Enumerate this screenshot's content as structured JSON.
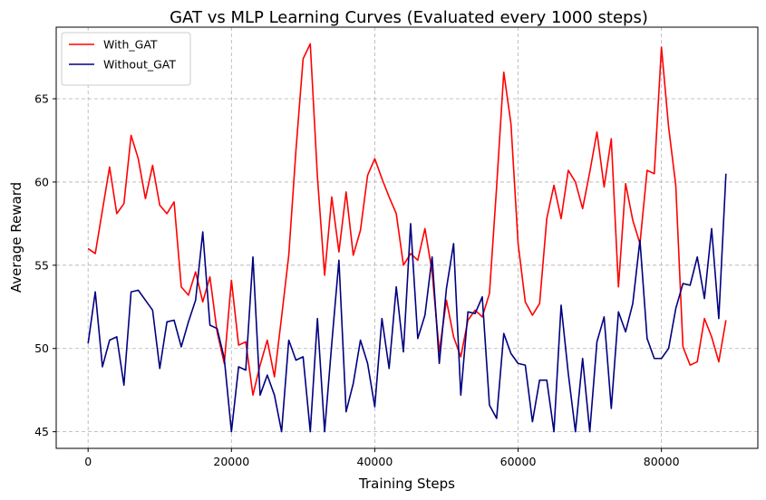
{
  "chart_data": {
    "type": "line",
    "title": "GAT vs MLP Learning Curves (Evaluated every 1000 steps)",
    "xlabel": "Training Steps",
    "ylabel": "Average Reward",
    "xlim": [
      -4450,
      93450
    ],
    "ylim": [
      44.0,
      69.3
    ],
    "xticks": [
      0,
      20000,
      40000,
      60000,
      80000
    ],
    "yticks": [
      45,
      50,
      55,
      60,
      65
    ],
    "grid": true,
    "legend_position": "top-left",
    "x": [
      0,
      1000,
      2000,
      3000,
      4000,
      5000,
      6000,
      7000,
      8000,
      9000,
      10000,
      11000,
      12000,
      13000,
      14000,
      15000,
      16000,
      17000,
      18000,
      19000,
      20000,
      21000,
      22000,
      23000,
      24000,
      25000,
      26000,
      27000,
      28000,
      29000,
      30000,
      31000,
      32000,
      33000,
      34000,
      35000,
      36000,
      37000,
      38000,
      39000,
      40000,
      41000,
      42000,
      43000,
      44000,
      45000,
      46000,
      47000,
      48000,
      49000,
      50000,
      51000,
      52000,
      53000,
      54000,
      55000,
      56000,
      57000,
      58000,
      59000,
      60000,
      61000,
      62000,
      63000,
      64000,
      65000,
      66000,
      67000,
      68000,
      69000,
      70000,
      71000,
      72000,
      73000,
      74000,
      75000,
      76000,
      77000,
      78000,
      79000,
      80000,
      81000,
      82000,
      83000,
      84000,
      85000,
      86000,
      87000,
      88000,
      89000
    ],
    "series": [
      {
        "name": "With_GAT",
        "color": "#ff0000",
        "values": [
          56.0,
          55.7,
          58.3,
          60.9,
          58.1,
          58.7,
          62.8,
          61.4,
          59.0,
          61.0,
          58.6,
          58.1,
          58.8,
          53.7,
          53.2,
          54.6,
          52.8,
          54.3,
          51.0,
          49.1,
          54.1,
          50.2,
          50.4,
          47.2,
          49.0,
          50.5,
          48.3,
          51.9,
          55.6,
          61.9,
          67.4,
          68.3,
          60.3,
          54.4,
          59.1,
          55.8,
          59.4,
          55.6,
          57.1,
          60.4,
          61.4,
          60.2,
          59.1,
          58.1,
          55.0,
          55.7,
          55.3,
          57.2,
          54.6,
          49.8,
          52.9,
          50.7,
          49.5,
          51.7,
          52.3,
          51.9,
          53.3,
          59.7,
          66.6,
          63.5,
          56.3,
          52.8,
          52.0,
          52.7,
          57.8,
          59.8,
          57.8,
          60.7,
          60.0,
          58.4,
          60.6,
          63.0,
          59.7,
          62.6,
          53.7,
          59.9,
          57.7,
          56.3,
          60.7,
          60.5,
          68.1,
          63.3,
          59.8,
          50.1,
          49.0,
          49.2,
          51.8,
          50.7,
          49.2,
          51.7
        ]
      },
      {
        "name": "Without_GAT",
        "color": "#000080",
        "values": [
          50.3,
          53.4,
          48.9,
          50.5,
          50.7,
          47.8,
          53.4,
          53.5,
          52.9,
          52.3,
          48.8,
          51.6,
          51.7,
          50.1,
          51.6,
          52.9,
          57.0,
          51.4,
          51.2,
          49.4,
          45.0,
          48.9,
          48.7,
          55.5,
          47.2,
          48.4,
          47.2,
          45.0,
          50.5,
          49.3,
          49.5,
          45.0,
          51.8,
          45.0,
          50.3,
          55.3,
          46.2,
          47.9,
          50.5,
          49.1,
          46.5,
          51.8,
          48.8,
          53.7,
          49.8,
          57.5,
          50.6,
          52.0,
          55.5,
          49.1,
          53.6,
          56.3,
          47.2,
          52.2,
          52.1,
          53.1,
          46.6,
          45.8,
          50.9,
          49.7,
          49.1,
          49.0,
          45.6,
          48.1,
          48.1,
          45.0,
          52.6,
          48.5,
          45.0,
          49.4,
          45.0,
          50.4,
          51.9,
          46.4,
          52.2,
          51.0,
          52.7,
          56.5,
          50.6,
          49.4,
          49.4,
          50.0,
          52.4,
          53.9,
          53.8,
          55.5,
          53.0,
          57.2,
          51.8,
          60.5
        ]
      }
    ]
  }
}
